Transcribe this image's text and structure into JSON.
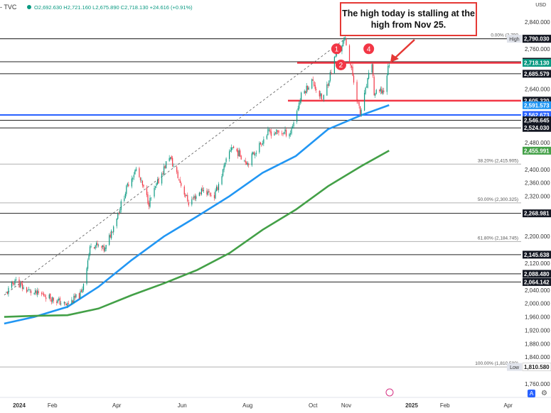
{
  "header": {
    "symbol": "- TVC",
    "ohlc": "O2,692.630  H2,721.160  L2,675.890  C2,718.130  +24.616 (+0.91%)"
  },
  "currency": "USD",
  "callout": "The high today is stalling at the high from Nov 25.",
  "buttons": {
    "auto": "A",
    "settings": "⚙"
  },
  "colors": {
    "up": "#089981",
    "down": "#f23645",
    "ma100": "#2196f3",
    "ma200": "#43a047",
    "red_line": "#f23645",
    "blue_line": "#2962ff",
    "grid": "#000000",
    "fib": "#b0b0b0"
  },
  "chart_data": {
    "type": "line",
    "instrument": "Gold (TVC)",
    "y_ticks": [
      "2,840.000",
      "2,760.000",
      "2,640.000",
      "2,480.000",
      "2,400.000",
      "2,360.000",
      "2,320.000",
      "2,200.000",
      "2,120.000",
      "2,040.000",
      "2,000.000",
      "1,960.000",
      "1,920.000",
      "1,880.000",
      "1,840.000",
      "1,760.000"
    ],
    "x_ticks": [
      {
        "label": "2024",
        "date": "2024-01-01"
      },
      {
        "label": "Feb",
        "date": "2024-02-01"
      },
      {
        "label": "Apr",
        "date": "2024-04-01"
      },
      {
        "label": "Jun",
        "date": "2024-06-01"
      },
      {
        "label": "Aug",
        "date": "2024-08-01"
      },
      {
        "label": "Oct",
        "date": "2024-10-01"
      },
      {
        "label": "Nov",
        "date": "2024-11-01"
      },
      {
        "label": "2025",
        "date": "2025-01-01"
      },
      {
        "label": "Feb",
        "date": "2025-02-01"
      },
      {
        "label": "Apr",
        "date": "2025-04-01"
      }
    ],
    "ylim": [
      1730,
      2870
    ],
    "price_path": [
      {
        "date": "2023-12-20",
        "price": 2030
      },
      {
        "date": "2023-12-28",
        "price": 2070
      },
      {
        "date": "2024-01-05",
        "price": 2045
      },
      {
        "date": "2024-01-15",
        "price": 2030
      },
      {
        "date": "2024-01-25",
        "price": 2025
      },
      {
        "date": "2024-02-14",
        "price": 1995
      },
      {
        "date": "2024-02-28",
        "price": 2030
      },
      {
        "date": "2024-03-08",
        "price": 2180
      },
      {
        "date": "2024-03-21",
        "price": 2160
      },
      {
        "date": "2024-04-01",
        "price": 2260
      },
      {
        "date": "2024-04-12",
        "price": 2360
      },
      {
        "date": "2024-04-19",
        "price": 2400
      },
      {
        "date": "2024-05-01",
        "price": 2300
      },
      {
        "date": "2024-05-20",
        "price": 2440
      },
      {
        "date": "2024-06-07",
        "price": 2300
      },
      {
        "date": "2024-06-20",
        "price": 2340
      },
      {
        "date": "2024-07-01",
        "price": 2320
      },
      {
        "date": "2024-07-17",
        "price": 2470
      },
      {
        "date": "2024-08-01",
        "price": 2420
      },
      {
        "date": "2024-08-20",
        "price": 2510
      },
      {
        "date": "2024-09-10",
        "price": 2510
      },
      {
        "date": "2024-09-20",
        "price": 2620
      },
      {
        "date": "2024-09-30",
        "price": 2665
      },
      {
        "date": "2024-10-10",
        "price": 2605
      },
      {
        "date": "2024-10-22",
        "price": 2740
      },
      {
        "date": "2024-10-31",
        "price": 2790
      },
      {
        "date": "2024-11-07",
        "price": 2680
      },
      {
        "date": "2024-11-14",
        "price": 2565
      },
      {
        "date": "2024-11-18",
        "price": 2620
      },
      {
        "date": "2024-11-25",
        "price": 2721
      },
      {
        "date": "2024-11-27",
        "price": 2625
      },
      {
        "date": "2024-12-06",
        "price": 2635
      },
      {
        "date": "2024-12-11",
        "price": 2718
      }
    ],
    "series": [
      {
        "name": "MA 100",
        "color": "#2196f3",
        "points": [
          {
            "date": "2023-12-18",
            "value": 1940
          },
          {
            "date": "2024-01-15",
            "value": 1960
          },
          {
            "date": "2024-02-15",
            "value": 1990
          },
          {
            "date": "2024-03-15",
            "value": 2050
          },
          {
            "date": "2024-04-15",
            "value": 2130
          },
          {
            "date": "2024-05-15",
            "value": 2200
          },
          {
            "date": "2024-06-15",
            "value": 2260
          },
          {
            "date": "2024-07-15",
            "value": 2320
          },
          {
            "date": "2024-08-15",
            "value": 2390
          },
          {
            "date": "2024-09-15",
            "value": 2440
          },
          {
            "date": "2024-10-15",
            "value": 2520
          },
          {
            "date": "2024-11-15",
            "value": 2562
          },
          {
            "date": "2024-12-11",
            "value": 2592
          }
        ]
      },
      {
        "name": "MA 200",
        "color": "#43a047",
        "points": [
          {
            "date": "2023-12-18",
            "value": 1960
          },
          {
            "date": "2024-01-15",
            "value": 1963
          },
          {
            "date": "2024-02-15",
            "value": 1965
          },
          {
            "date": "2024-03-15",
            "value": 1985
          },
          {
            "date": "2024-04-15",
            "value": 2025
          },
          {
            "date": "2024-05-15",
            "value": 2060
          },
          {
            "date": "2024-06-15",
            "value": 2100
          },
          {
            "date": "2024-07-15",
            "value": 2150
          },
          {
            "date": "2024-08-15",
            "value": 2220
          },
          {
            "date": "2024-09-15",
            "value": 2280
          },
          {
            "date": "2024-10-15",
            "value": 2350
          },
          {
            "date": "2024-11-15",
            "value": 2410
          },
          {
            "date": "2024-12-11",
            "value": 2456
          }
        ]
      }
    ],
    "horizontal_levels": [
      {
        "value": 2790.03,
        "label": "2,790.030",
        "style": "black"
      },
      {
        "value": 2721.41,
        "label": "2,721.410",
        "style": "black"
      },
      {
        "value": 2685.579,
        "label": "2,685.579",
        "style": "black"
      },
      {
        "value": 2546.645,
        "label": "2,546.645",
        "style": "black"
      },
      {
        "value": 2524.03,
        "label": "2,524.030",
        "style": "black"
      },
      {
        "value": 2268.981,
        "label": "2,268.981",
        "style": "black"
      },
      {
        "value": 2145.638,
        "label": "2,145.638",
        "style": "black"
      },
      {
        "value": 2088.48,
        "label": "2,088.480",
        "style": "black"
      },
      {
        "value": 2064.142,
        "label": "2,064.142",
        "style": "black"
      },
      {
        "value": 2718.13,
        "label": "2,718.130",
        "style": "red"
      },
      {
        "value": 2605.32,
        "label": "2,605.320",
        "style": "red"
      },
      {
        "value": 2562.673,
        "label": "2,562.673",
        "style": "blue"
      }
    ],
    "axis_badges": [
      {
        "value": 2790.07,
        "label": "2,790.070",
        "kind": "high",
        "tag": "High"
      },
      {
        "value": 2790.03,
        "label": "2,790.030",
        "kind": "black"
      },
      {
        "value": 2721.41,
        "label": "2,721.410",
        "kind": "black"
      },
      {
        "value": 2718.13,
        "label": "2,718.130",
        "kind": "price"
      },
      {
        "value": 2685.579,
        "label": "2,685.579",
        "kind": "black"
      },
      {
        "value": 2605.32,
        "label": "2,605.320",
        "kind": "black"
      },
      {
        "value": 2591.573,
        "label": "2,591.573",
        "kind": "ma100"
      },
      {
        "value": 2562.673,
        "label": "2,562.673",
        "kind": "blue"
      },
      {
        "value": 2546.645,
        "label": "2,546.645",
        "kind": "black"
      },
      {
        "value": 2524.03,
        "label": "2,524.030",
        "kind": "black"
      },
      {
        "value": 2455.991,
        "label": "2,455.991",
        "kind": "ma200"
      },
      {
        "value": 2268.981,
        "label": "2,268.981",
        "kind": "black"
      },
      {
        "value": 2145.638,
        "label": "2,145.638",
        "kind": "black"
      },
      {
        "value": 2088.48,
        "label": "2,088.480",
        "kind": "black"
      },
      {
        "value": 2064.142,
        "label": "2,064.142",
        "kind": "black"
      },
      {
        "value": 1810.58,
        "label": "1,810.580",
        "kind": "low",
        "tag": "Low"
      }
    ],
    "fib_levels": [
      {
        "value": 2790.03,
        "label": "0.00% (2,790"
      },
      {
        "value": 2415.905,
        "label": "38.20% (2,415.905)"
      },
      {
        "value": 2300.325,
        "label": "50.00% (2,300.325)"
      },
      {
        "value": 2184.745,
        "label": "61.80% (2,184.745)"
      },
      {
        "value": 1810.58,
        "label": "100.00% (1,810.580)"
      }
    ],
    "channel": [
      {
        "date": "2023-12-18",
        "value": 2025
      },
      {
        "date": "2024-10-31",
        "value": 2790
      }
    ],
    "markers": [
      {
        "label": "1",
        "date": "2024-10-23",
        "value": 2760
      },
      {
        "label": "2",
        "date": "2024-10-27",
        "value": 2712
      },
      {
        "label": "4",
        "date": "2024-11-22",
        "value": 2760
      }
    ]
  }
}
